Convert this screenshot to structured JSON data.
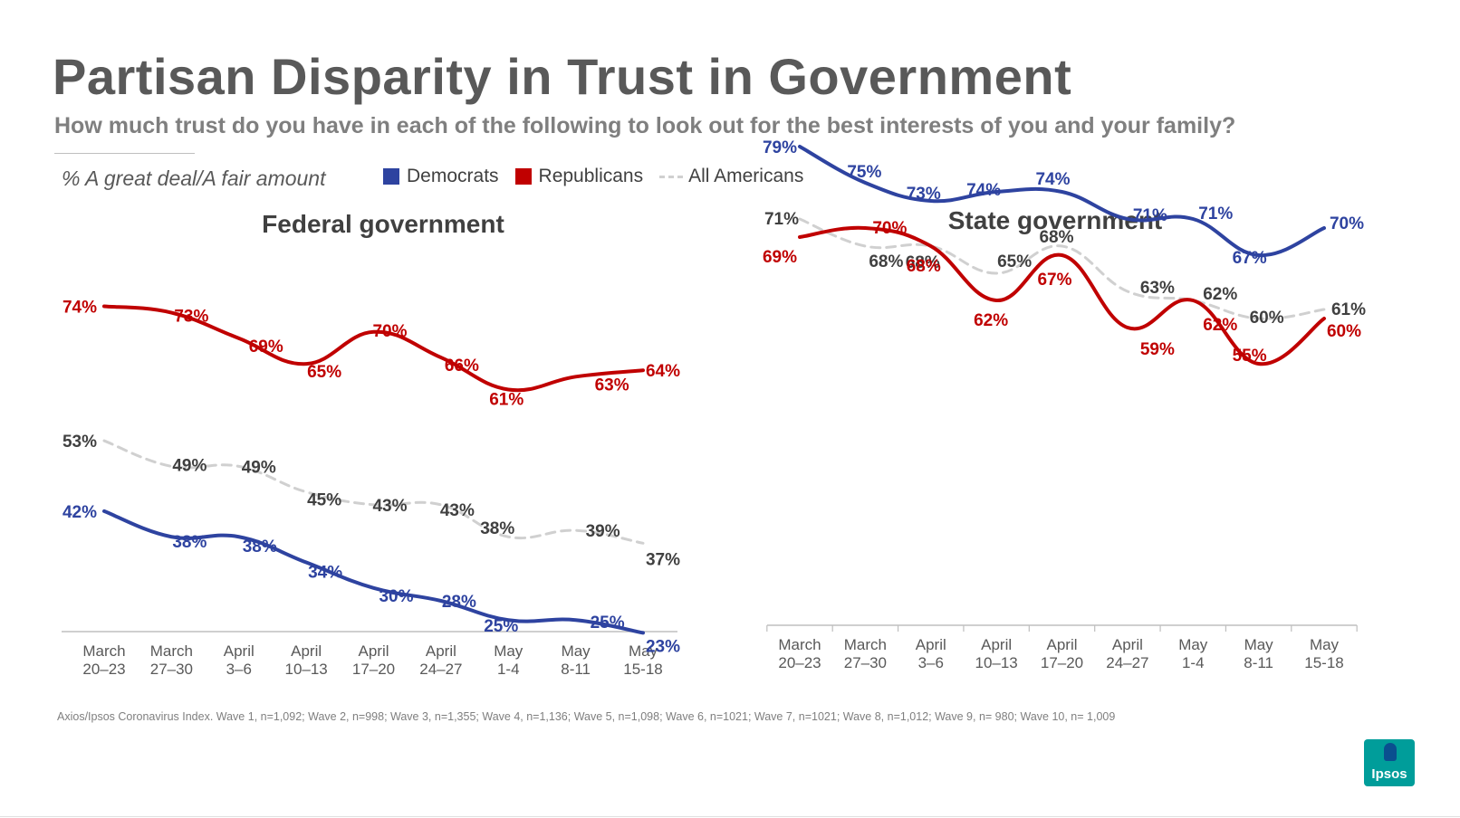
{
  "title": "Partisan Disparity in Trust in Government",
  "subtitle": "How much trust do you have in each of the following to look out for the best interests of you and your family?",
  "measure_label": "% A great deal/A fair amount",
  "legend": [
    {
      "label": "Democrats",
      "color": "#2e43a0"
    },
    {
      "label": "Republicans",
      "color": "#c00000"
    },
    {
      "label": "All Americans",
      "color": "#d0d0d0"
    }
  ],
  "footnote": "Axios/Ipsos Coronavirus Index. Wave 1, n=1,092; Wave 2, n=998; Wave 3, n=1,355; Wave 4, n=1,136; Wave 5, n=1,098; Wave 6, n=1021; Wave 7, n=1021; Wave 8, n=1,012; Wave 9, n= 980; Wave 10, n= 1,009",
  "logo_text": "Ipsos",
  "chart_data": [
    {
      "type": "line",
      "title": "Federal government",
      "categories": [
        [
          "March",
          "20–23"
        ],
        [
          "March",
          "27–30"
        ],
        [
          "April",
          "3–6"
        ],
        [
          "April",
          "10–13"
        ],
        [
          "April",
          "17–20"
        ],
        [
          "April",
          "24–27"
        ],
        [
          "May",
          "1-4"
        ],
        [
          "May",
          "8-11"
        ],
        [
          "May",
          "15-18"
        ]
      ],
      "ylim": [
        15,
        80
      ],
      "series": [
        {
          "name": "Republicans",
          "color": "#c00000",
          "values": [
            74,
            73,
            69,
            65,
            70,
            66,
            61,
            63,
            64
          ],
          "labels": [
            "74%",
            "73%",
            "69%",
            "65%",
            "70%",
            "66%",
            "61%",
            "63%",
            "64%"
          ]
        },
        {
          "name": "All Americans",
          "color": "#d0d0d0",
          "values": [
            53,
            49,
            49,
            45,
            43,
            43,
            38,
            39,
            37
          ],
          "labels": [
            "53%",
            "49%",
            "49%",
            "45%",
            "43%",
            "43%",
            "38%",
            "39%",
            "37%"
          ]
        },
        {
          "name": "Democrats",
          "color": "#2e43a0",
          "values": [
            42,
            38,
            38,
            34,
            30,
            28,
            25,
            25,
            23
          ],
          "labels": [
            "42%",
            "38%",
            "38%",
            "34%",
            "30%",
            "28%",
            "25%",
            "25%",
            "23%"
          ]
        }
      ]
    },
    {
      "type": "line",
      "title": "State government",
      "categories": [
        [
          "March",
          "20–23"
        ],
        [
          "March",
          "27–30"
        ],
        [
          "April",
          "3–6"
        ],
        [
          "April",
          "10–13"
        ],
        [
          "April",
          "17–20"
        ],
        [
          "April",
          "24–27"
        ],
        [
          "May",
          "1-4"
        ],
        [
          "May",
          "8-11"
        ],
        [
          "May",
          "15-18"
        ]
      ],
      "ylim": [
        20,
        80
      ],
      "series": [
        {
          "name": "Democrats",
          "color": "#2e43a0",
          "values": [
            79,
            75,
            73,
            74,
            74,
            71,
            71,
            67,
            70
          ],
          "labels": [
            "79%",
            "75%",
            "73%",
            "74%",
            "74%",
            "71%",
            "71%",
            "67%",
            "70%"
          ]
        },
        {
          "name": "All Americans",
          "color": "#d0d0d0",
          "values": [
            71,
            68,
            68,
            65,
            68,
            63,
            62,
            60,
            61
          ],
          "labels": [
            "71%",
            "68%",
            "68%",
            "65%",
            "68%",
            "63%",
            "62%",
            "60%",
            "61%"
          ]
        },
        {
          "name": "Republicans",
          "color": "#c00000",
          "values": [
            69,
            70,
            68,
            62,
            67,
            59,
            62,
            55,
            60
          ],
          "labels": [
            "69%",
            "70%",
            "68%",
            "62%",
            "67%",
            "59%",
            "62%",
            "55%",
            "60%"
          ]
        }
      ]
    }
  ]
}
